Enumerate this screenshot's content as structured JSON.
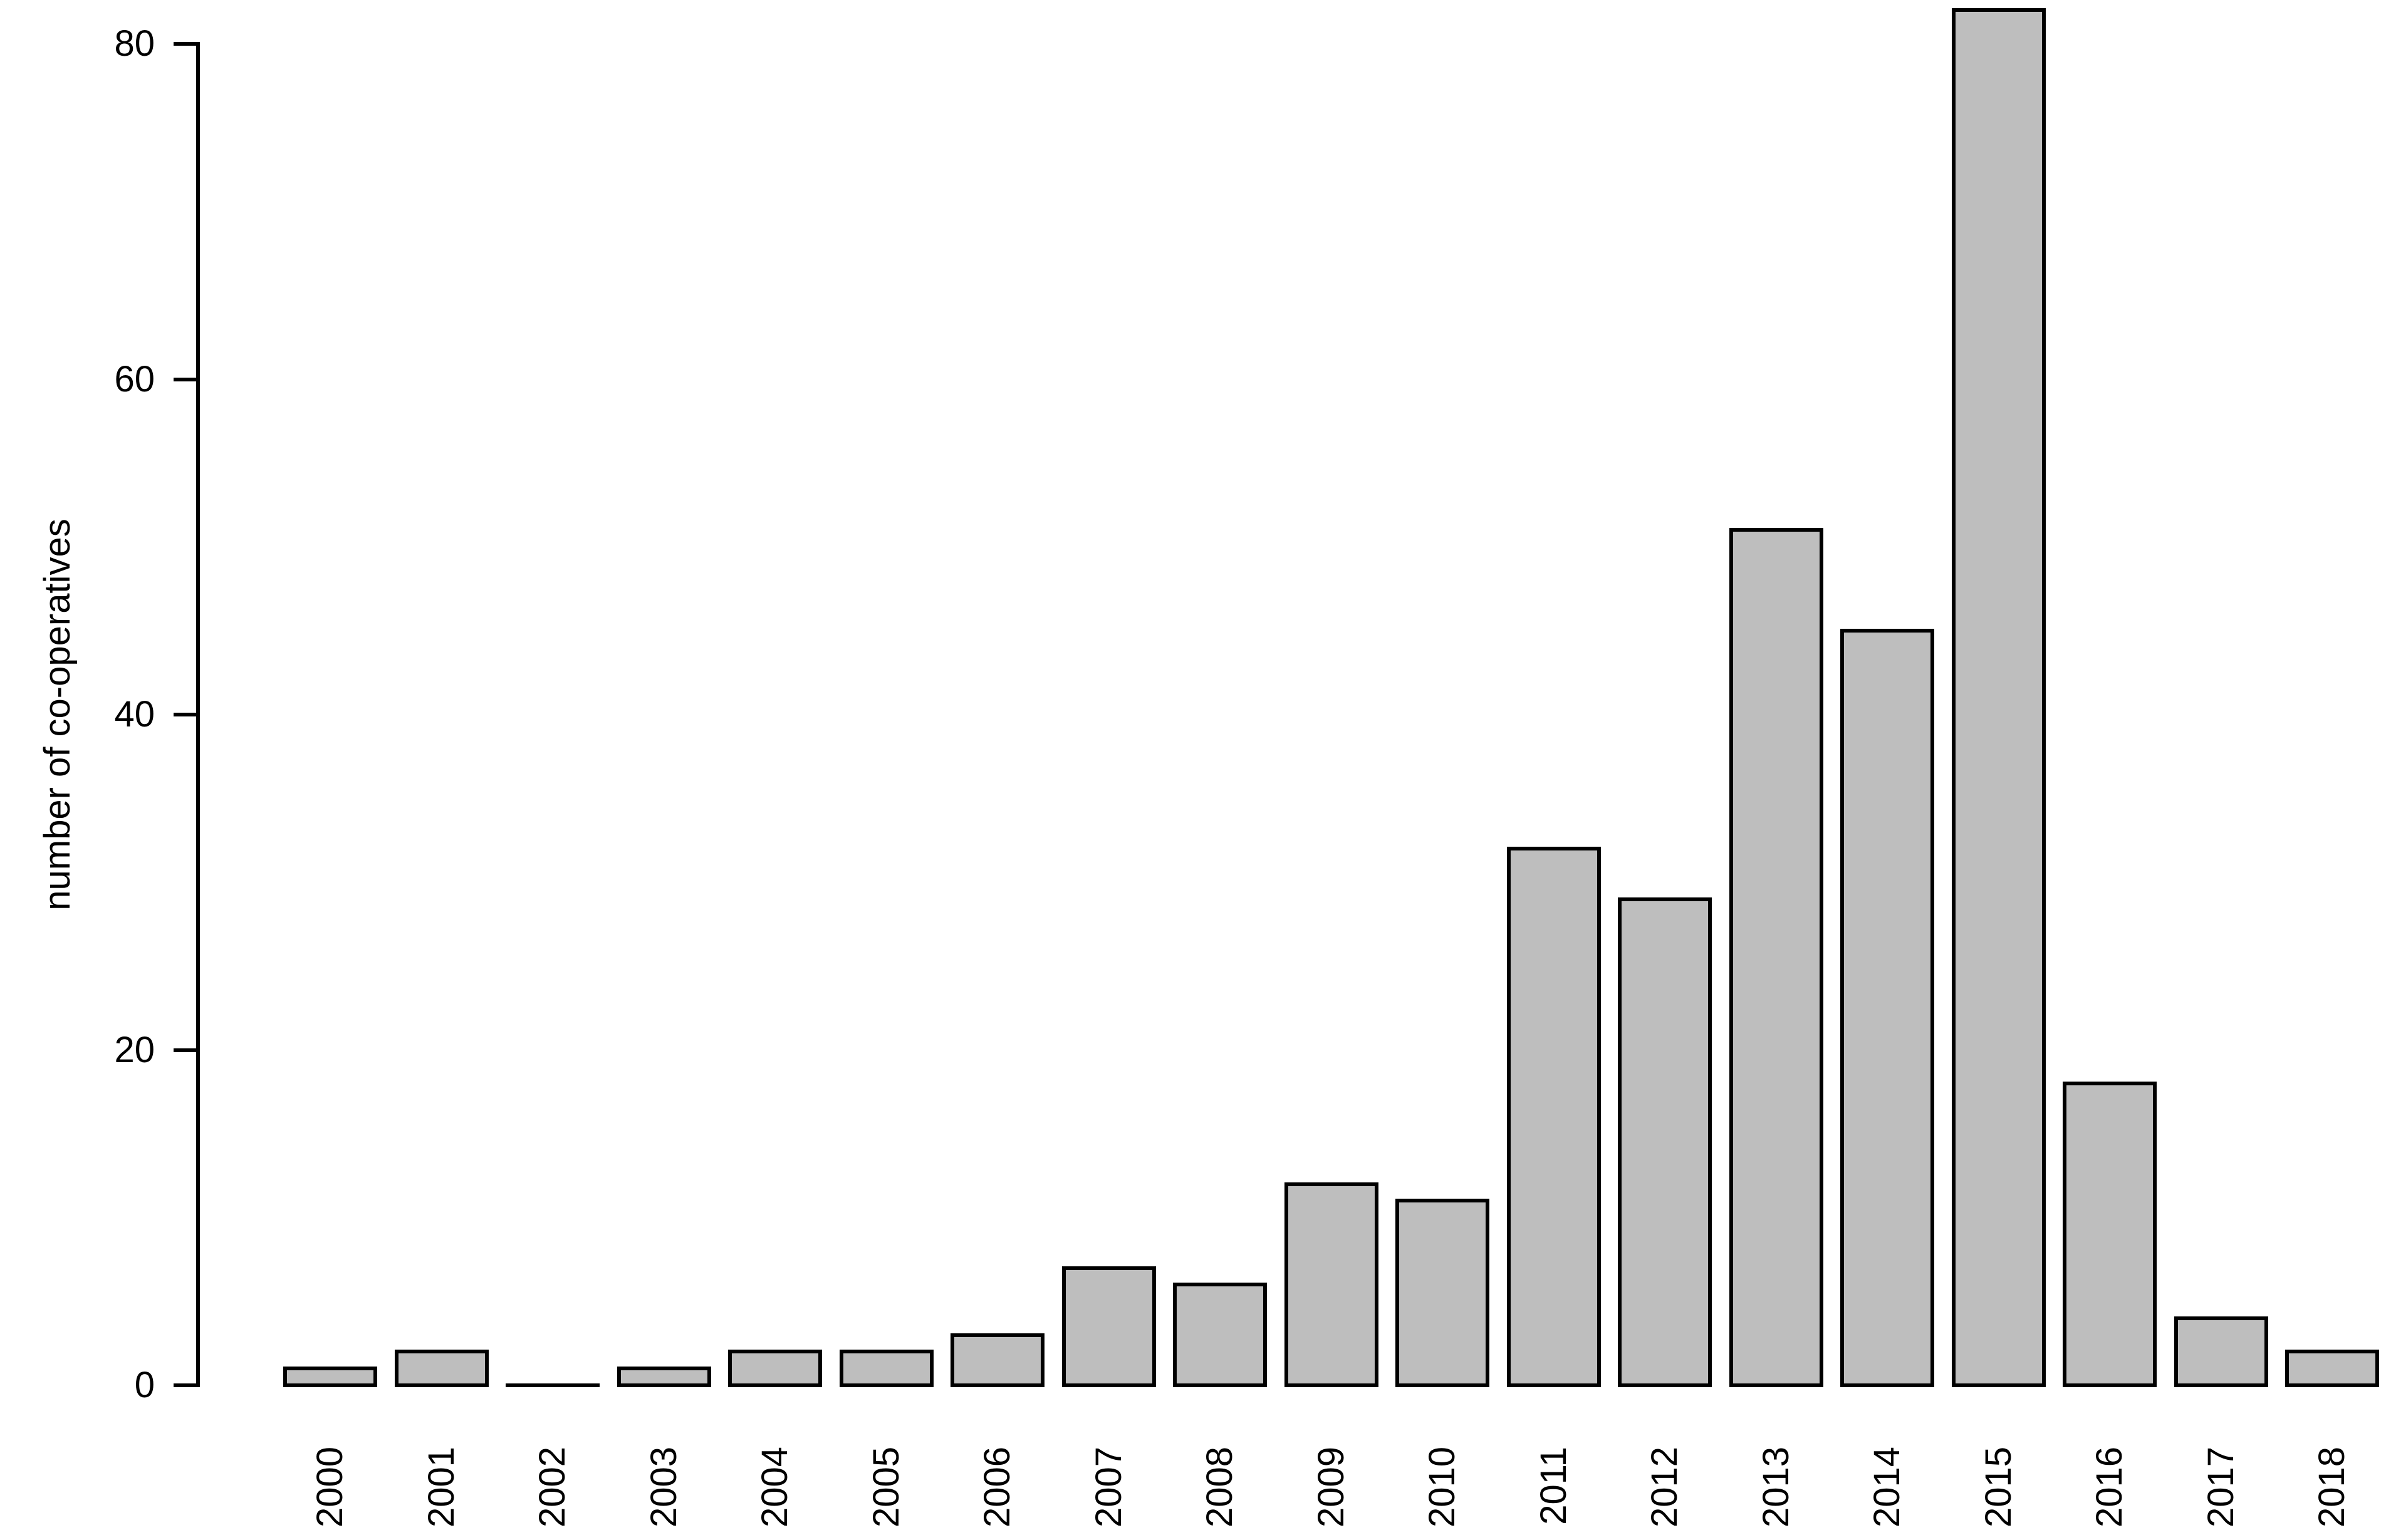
{
  "chart_data": {
    "type": "bar",
    "title": "",
    "xlabel": "",
    "ylabel": "number of co-operatives",
    "categories": [
      "2000",
      "2001",
      "2002",
      "2003",
      "2004",
      "2005",
      "2006",
      "2007",
      "2008",
      "2009",
      "2010",
      "2011",
      "2012",
      "2013",
      "2014",
      "2015",
      "2016",
      "2017",
      "2018"
    ],
    "values": [
      1,
      2,
      0,
      1,
      2,
      2,
      3,
      7,
      6,
      12,
      11,
      32,
      29,
      51,
      45,
      82,
      18,
      4,
      2
    ],
    "ytick_values": [
      0,
      20,
      40,
      60,
      80
    ],
    "ytick_labels": [
      "0",
      "20",
      "40",
      "60",
      "80"
    ],
    "ylim": [
      0,
      82
    ],
    "grid": "off",
    "legend": "none",
    "bar_fill_color": "#bebebe",
    "bar_border_color": "#000000",
    "axis_color": "#000000",
    "text_color": "#000000",
    "background_color": "#ffffff"
  }
}
